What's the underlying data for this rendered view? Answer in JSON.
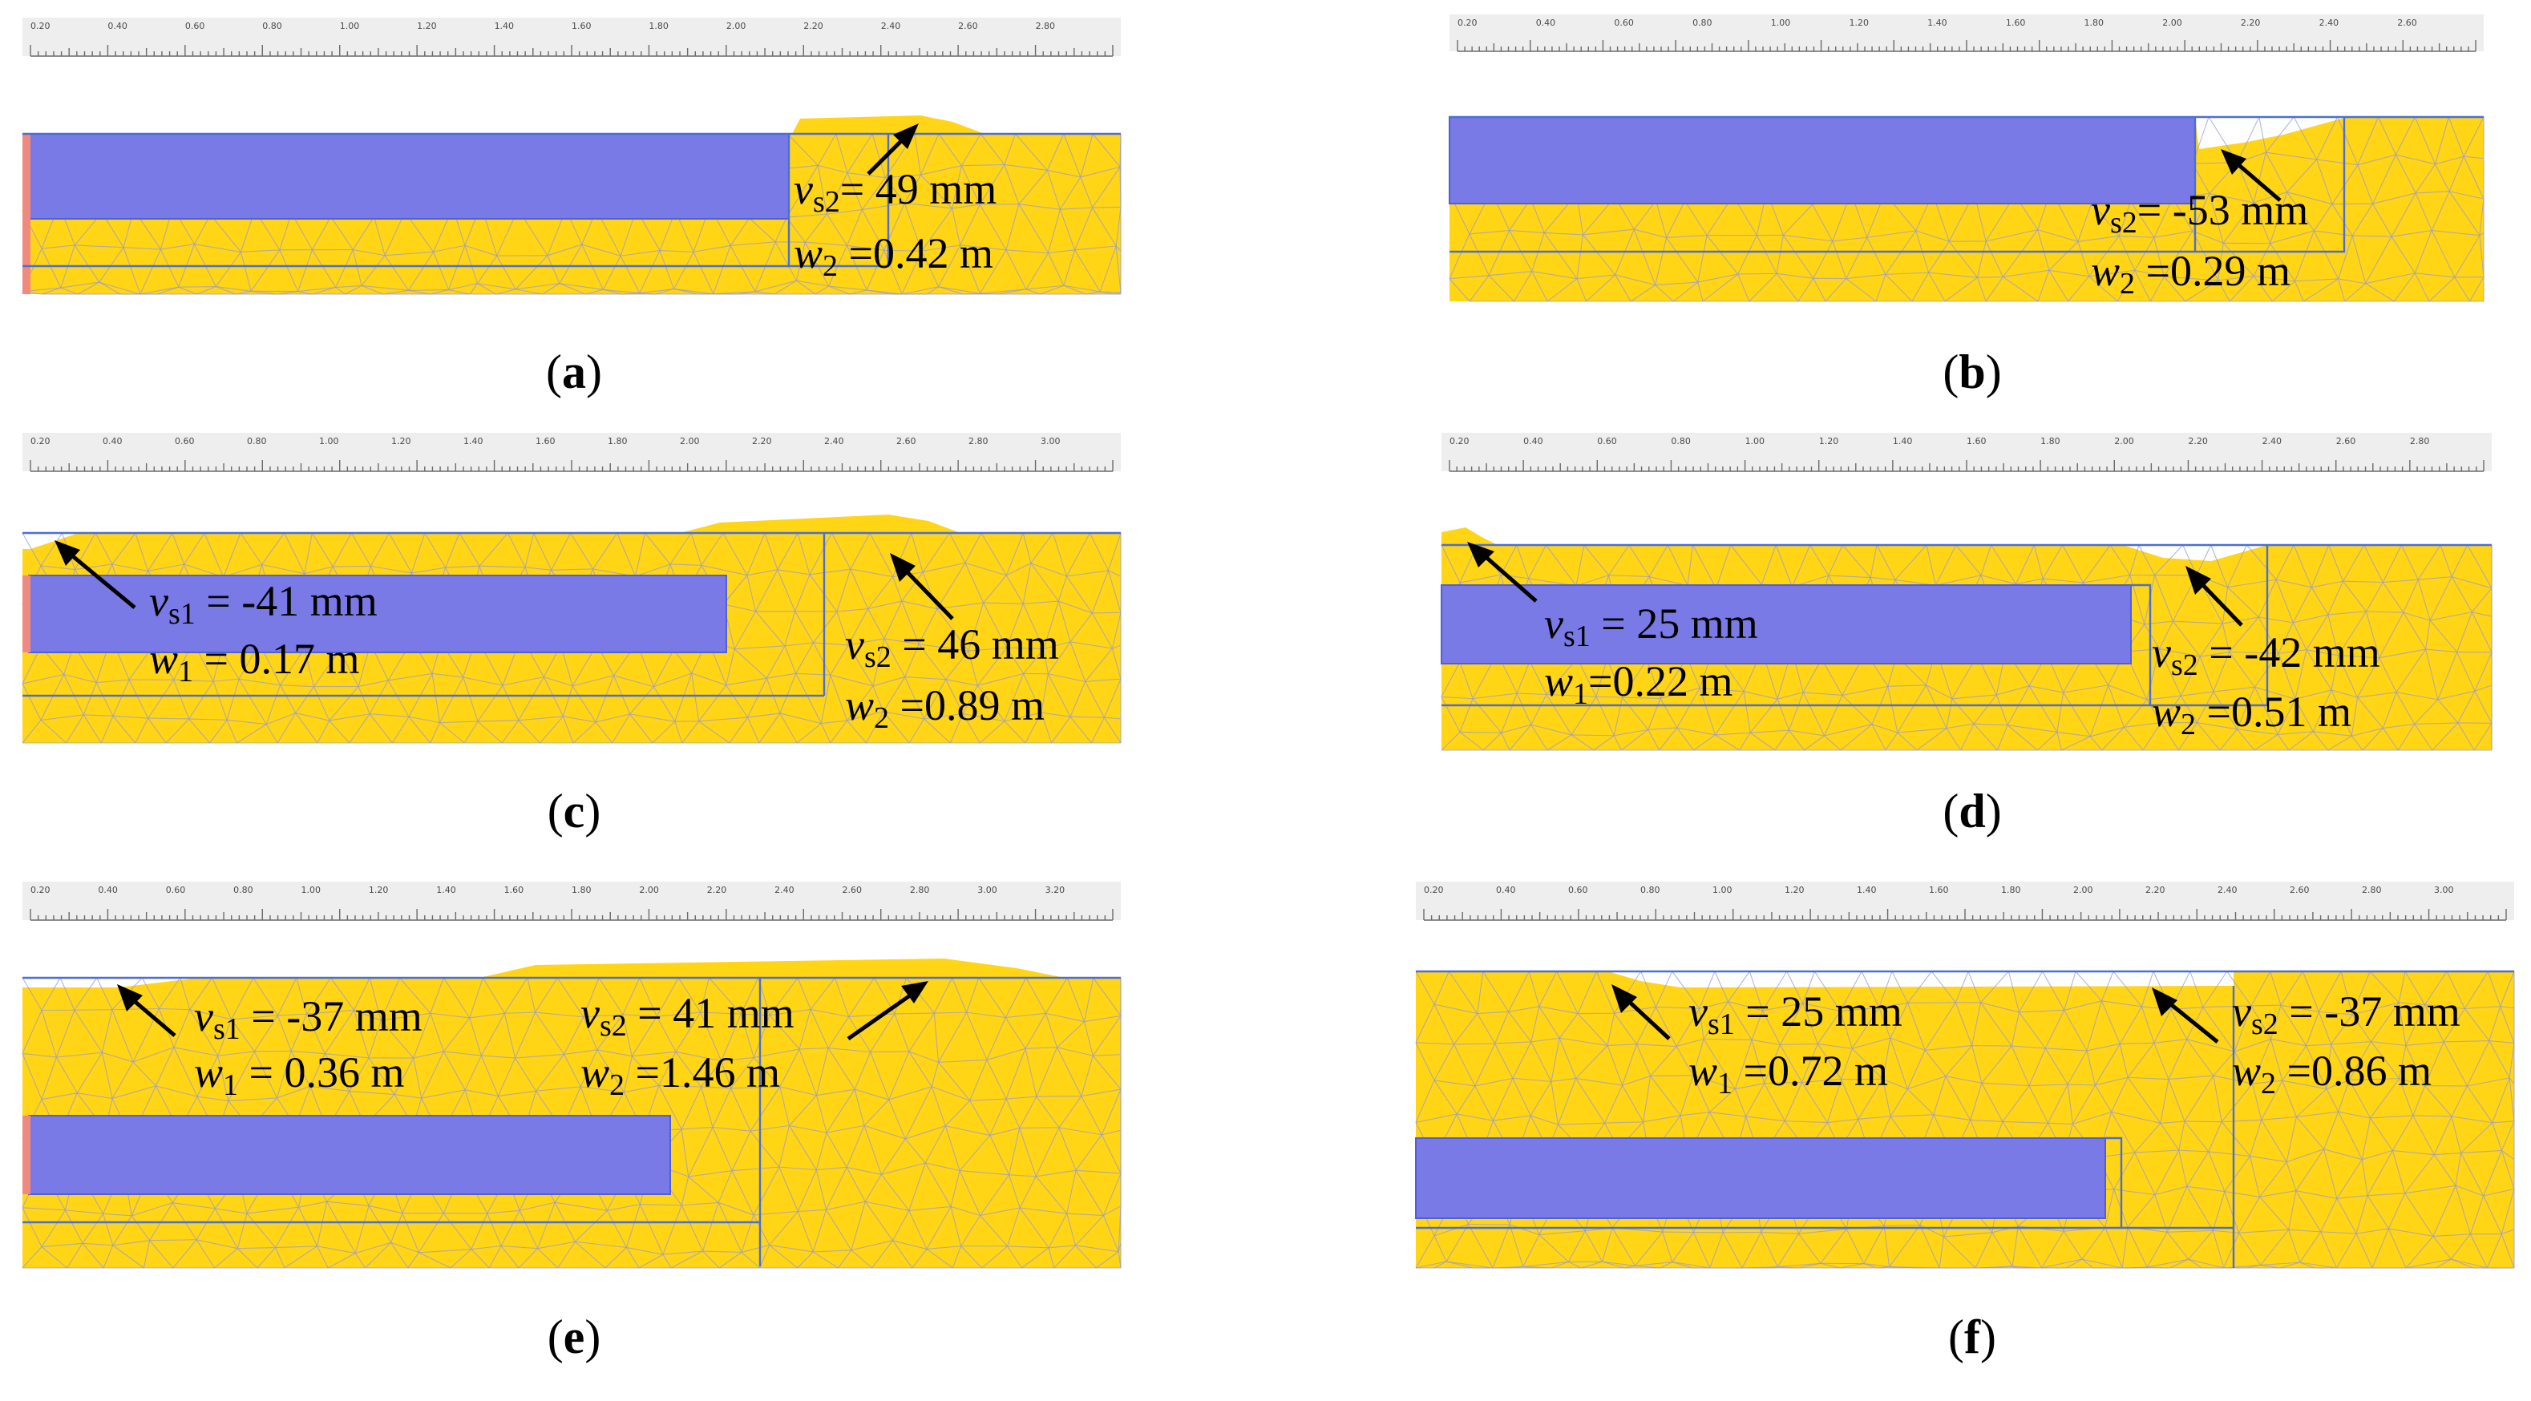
{
  "panels": [
    {
      "id": "a",
      "caption_letter": "a",
      "ruler_labels": [
        "0.20",
        "0.40",
        "0.60",
        "0.80",
        "1.00",
        "1.20",
        "1.40",
        "1.60",
        "1.80",
        "2.00",
        "2.20",
        "2.40",
        "2.60",
        "2.80"
      ],
      "annotations": [
        {
          "symbol": "v",
          "sub": "s2",
          "text": "= 49 mm"
        },
        {
          "symbol": "w",
          "sub": "2",
          "text": " =0.42 m"
        }
      ]
    },
    {
      "id": "b",
      "caption_letter": "b",
      "ruler_labels": [
        "0.20",
        "0.40",
        "0.60",
        "0.80",
        "1.00",
        "1.20",
        "1.40",
        "1.60",
        "1.80",
        "2.00",
        "2.20",
        "2.40",
        "2.60"
      ],
      "annotations": [
        {
          "symbol": "v",
          "sub": "s2",
          "text": "= -53 mm"
        },
        {
          "symbol": "w",
          "sub": "2",
          "text": " =0.29 m"
        }
      ]
    },
    {
      "id": "c",
      "caption_letter": "c",
      "ruler_labels": [
        "0.20",
        "0.40",
        "0.60",
        "0.80",
        "1.00",
        "1.20",
        "1.40",
        "1.60",
        "1.80",
        "2.00",
        "2.20",
        "2.40",
        "2.60",
        "2.80",
        "3.00"
      ],
      "annotations": [
        {
          "symbol": "v",
          "sub": "s1",
          "text": " = -41 mm"
        },
        {
          "symbol": "w",
          "sub": "1",
          "text": " = 0.17 m"
        },
        {
          "symbol": "v",
          "sub": "s2",
          "text": " = 46 mm"
        },
        {
          "symbol": "w",
          "sub": "2",
          "text": " =0.89 m"
        }
      ]
    },
    {
      "id": "d",
      "caption_letter": "d",
      "ruler_labels": [
        "0.20",
        "0.40",
        "0.60",
        "0.80",
        "1.00",
        "1.20",
        "1.40",
        "1.60",
        "1.80",
        "2.00",
        "2.20",
        "2.40",
        "2.60",
        "2.80"
      ],
      "annotations": [
        {
          "symbol": "v",
          "sub": "s1",
          "text": " = 25 mm"
        },
        {
          "symbol": "w",
          "sub": "1",
          "text": "=0.22 m"
        },
        {
          "symbol": "v",
          "sub": "s2",
          "text": " = -42 mm"
        },
        {
          "symbol": "w",
          "sub": "2",
          "text": " =0.51 m"
        }
      ]
    },
    {
      "id": "e",
      "caption_letter": "e",
      "ruler_labels": [
        "0.20",
        "0.40",
        "0.60",
        "0.80",
        "1.00",
        "1.20",
        "1.40",
        "1.60",
        "1.80",
        "2.00",
        "2.20",
        "2.40",
        "2.60",
        "2.80",
        "3.00",
        "3.20"
      ],
      "annotations": [
        {
          "symbol": "v",
          "sub": "s1",
          "text": " = -37 mm"
        },
        {
          "symbol": "w",
          "sub": "1",
          "text": " = 0.36 m"
        },
        {
          "symbol": "v",
          "sub": "s2",
          "text": " = 41 mm"
        },
        {
          "symbol": "w",
          "sub": "2",
          "text": " =1.46 m"
        }
      ]
    },
    {
      "id": "f",
      "caption_letter": "f",
      "ruler_labels": [
        "0.20",
        "0.40",
        "0.60",
        "0.80",
        "1.00",
        "1.20",
        "1.40",
        "1.60",
        "1.80",
        "2.00",
        "2.20",
        "2.40",
        "2.60",
        "2.80",
        "3.00"
      ],
      "annotations": [
        {
          "symbol": "v",
          "sub": "s1",
          "text": " = 25 mm"
        },
        {
          "symbol": "w",
          "sub": "1",
          "text": " =0.72 m"
        },
        {
          "symbol": "v",
          "sub": "s2",
          "text": " = -37 mm"
        },
        {
          "symbol": "w",
          "sub": "2",
          "text": " =0.86 m"
        }
      ]
    }
  ],
  "colors": {
    "soil": "#ffd516",
    "pile": "#7a7ae6",
    "boundary": "#4a6ed8",
    "mesh": "#9c9cc8"
  }
}
